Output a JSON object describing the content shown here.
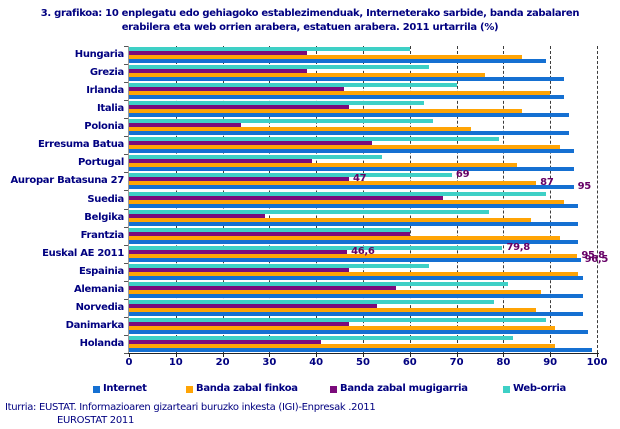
{
  "title": {
    "line1": "3. grafikoa: 10 enplegatu edo gehiagoko establezimenduak, Interneterako sarbide, banda zabalaren",
    "line2": "erabilera eta web orrien arabera, estatuen arabera. 2011 urtarrila (%)"
  },
  "footer": {
    "line1": "Iturria: EUSTAT. Informazioaren gizarteari buruzko inkesta (IGI)-Enpresak .2011",
    "line2": "EUROSTAT 2011"
  },
  "colors": {
    "text_navy": "#000080",
    "value_label": "#660066",
    "internet_blue": "#1570d2",
    "fixed_broadband_orange": "#ffa405",
    "mobile_broadband_purple": "#7b0b7b",
    "web_cyan": "#3ed0c6"
  },
  "chart_data": {
    "type": "bar",
    "orientation": "horizontal",
    "title": "3. grafikoa: 10 enplegatu edo gehiagoko establezimenduak, Interneterako sarbide, banda zabalaren erabilera eta web orrien arabera, estatuen arabera. 2011 urtarrila (%)",
    "xlabel": "",
    "ylabel": "",
    "xlim": [
      0,
      100
    ],
    "xticks": [
      0,
      10,
      20,
      30,
      40,
      50,
      60,
      70,
      80,
      90,
      100
    ],
    "grid": "vertical-dashed",
    "legend_position": "bottom",
    "categories": [
      "Hungaria",
      "Grezia",
      "Irlanda",
      "Italia",
      "Polonia",
      "Erresuma Batua",
      "Portugal",
      "Auropar Batasuna 27",
      "Suedia",
      "Belgika",
      "Frantzia",
      "Euskal AE 2011",
      "Espainia",
      "Alemania",
      "Norvedia",
      "Danimarka",
      "Holanda"
    ],
    "series": [
      {
        "name": "Internet",
        "color": "#1570d2",
        "values": [
          89,
          93,
          93,
          94,
          94,
          95,
          95,
          95,
          96,
          96,
          96,
          96.5,
          97,
          97,
          97,
          98,
          99
        ]
      },
      {
        "name": "Banda zabal finkoa",
        "color": "#ffa405",
        "values": [
          84,
          76,
          90,
          84,
          73,
          92,
          83,
          87,
          93,
          86,
          92,
          95.8,
          96,
          88,
          87,
          91,
          91
        ]
      },
      {
        "name": "Banda zabal mugigarria",
        "color": "#7b0b7b",
        "pattern": true,
        "values": [
          38,
          38,
          46,
          47,
          24,
          52,
          39,
          47,
          67,
          29,
          60,
          46.6,
          47,
          57,
          53,
          47,
          41
        ]
      },
      {
        "name": "Web-orria",
        "color": "#3ed0c6",
        "values": [
          60,
          64,
          70,
          63,
          65,
          79,
          54,
          69,
          89,
          77,
          60,
          79.8,
          64,
          81,
          78,
          89,
          82
        ]
      }
    ],
    "annotations": [
      {
        "category": "Auropar Batasuna 27",
        "series": "Banda zabal mugigarria",
        "text": "47"
      },
      {
        "category": "Auropar Batasuna 27",
        "series": "Web-orria",
        "text": "69"
      },
      {
        "category": "Auropar Batasuna 27",
        "series": "Banda zabal finkoa",
        "text": "87"
      },
      {
        "category": "Auropar Batasuna 27",
        "series": "Internet",
        "text": "95"
      },
      {
        "category": "Euskal AE 2011",
        "series": "Banda zabal mugigarria",
        "text": "46,6"
      },
      {
        "category": "Euskal AE 2011",
        "series": "Web-orria",
        "text": "79,8"
      },
      {
        "category": "Euskal AE 2011",
        "series": "Banda zabal finkoa",
        "text": "95,8"
      },
      {
        "category": "Euskal AE 2011",
        "series": "Internet",
        "text": "96,5"
      }
    ]
  }
}
